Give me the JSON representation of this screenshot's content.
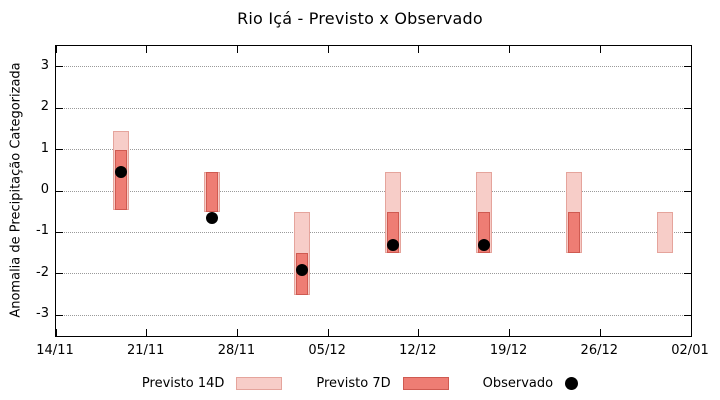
{
  "chart_data": {
    "type": "bar",
    "title": "Rio Içá - Previsto x Observado",
    "xlabel": "",
    "ylabel": "Anomalia de Precipitação Categorizada",
    "ylim": [
      -3.5,
      3.5
    ],
    "yticks": [
      -3,
      -2,
      -1,
      0,
      1,
      2,
      3
    ],
    "xtick_labels": [
      "14/11",
      "21/11",
      "28/11",
      "05/12",
      "12/12",
      "19/12",
      "26/12",
      "02/01"
    ],
    "xtick_days": [
      0,
      7,
      14,
      21,
      28,
      35,
      42,
      49
    ],
    "x_total_days": 49,
    "grid": "horizontal-dotted",
    "legend_position": "bottom-center",
    "legend": [
      {
        "label": "Previsto 14D",
        "color": "#f7cdc8"
      },
      {
        "label": "Previsto 7D",
        "color": "#ee7d74"
      },
      {
        "label": "Observado",
        "color": "#000000"
      }
    ],
    "colors": {
      "p14_fill": "#f7cdc8",
      "p14_border": "#e5a49c",
      "p7_fill": "#ee7d74",
      "p7_border": "#cf5a51",
      "obs": "#000000",
      "grid": "#9a9a9a"
    },
    "points": [
      {
        "date": "19/11",
        "day": 5,
        "p14_low": -0.45,
        "p14_high": 1.45,
        "p7_low": -0.45,
        "p7_high": 1.0,
        "obs": 0.45
      },
      {
        "date": "26/11",
        "day": 12,
        "p14_low": -0.5,
        "p14_high": 0.45,
        "p7_low": -0.5,
        "p7_high": 0.45,
        "obs": -0.65
      },
      {
        "date": "03/12",
        "day": 19,
        "p14_low": -2.5,
        "p14_high": -0.5,
        "p7_low": -2.5,
        "p7_high": -1.5,
        "obs": -1.9
      },
      {
        "date": "10/12",
        "day": 26,
        "p14_low": -1.5,
        "p14_high": 0.45,
        "p7_low": -1.5,
        "p7_high": -0.5,
        "obs": -1.3
      },
      {
        "date": "17/12",
        "day": 33,
        "p14_low": -1.5,
        "p14_high": 0.45,
        "p7_low": -1.5,
        "p7_high": -0.5,
        "obs": null
      },
      {
        "date": "17/12",
        "day": 33,
        "p14_low": -1.5,
        "p14_high": 0.45,
        "p7_low": -1.5,
        "p7_high": -0.5,
        "obs": -1.3
      },
      {
        "date": "24/12",
        "day": 40,
        "p14_low": -1.5,
        "p14_high": 0.45,
        "p7_low": -1.5,
        "p7_high": -0.5,
        "obs": null
      },
      {
        "date": "31/12",
        "day": 47,
        "p14_low": -1.5,
        "p14_high": -0.5,
        "p7_low": null,
        "p7_high": null,
        "obs": null
      }
    ]
  }
}
